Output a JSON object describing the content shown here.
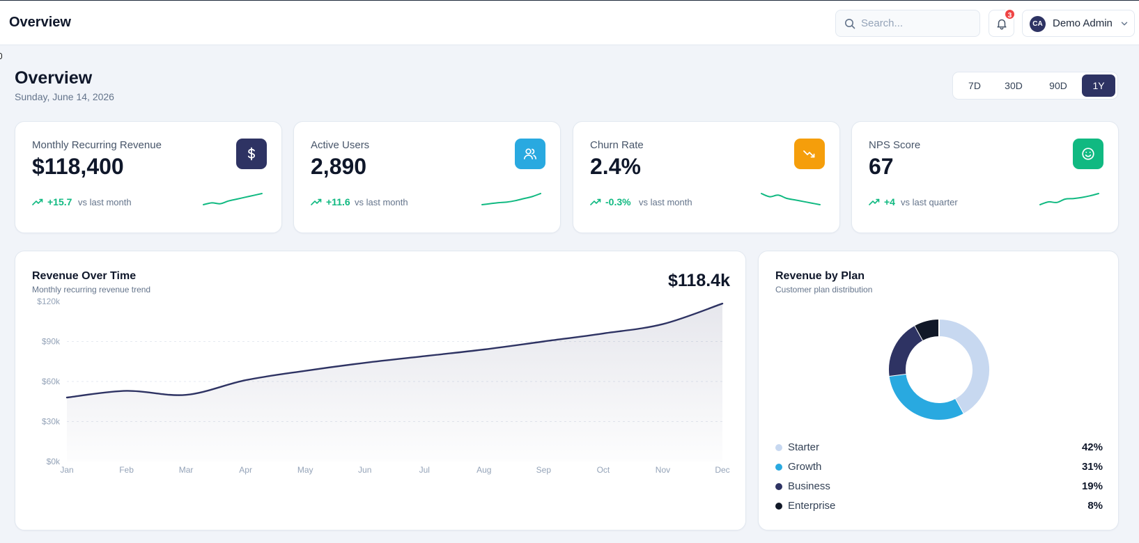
{
  "topbar": {
    "title": "Overview",
    "search_placeholder": "Search...",
    "notifications_count": "3",
    "user": {
      "initials": "CA",
      "name": "Demo Admin"
    }
  },
  "page": {
    "title": "Overview",
    "date": "Sunday, June 14, 2026",
    "ranges": [
      "7D",
      "30D",
      "90D",
      "1Y"
    ],
    "active_range": "1Y"
  },
  "kpis": [
    {
      "label": "Monthly Recurring Revenue",
      "value": "$118,400",
      "delta": "+15.7",
      "compare": "vs last month",
      "icon": "dollar-icon",
      "icon_color": "#2e3363",
      "spark": [
        2,
        3,
        2.5,
        4,
        5,
        6,
        7,
        8
      ]
    },
    {
      "label": "Active Users",
      "value": "2,890",
      "delta": "+11.6",
      "compare": "vs last month",
      "icon": "users-icon",
      "icon_color": "#29a9e0",
      "spark": [
        2,
        2.5,
        3,
        3.3,
        4,
        5,
        6,
        7.5
      ]
    },
    {
      "label": "Churn Rate",
      "value": "2.4%",
      "delta": "-0.3%",
      "compare": "vs last month",
      "icon": "trend-down-icon",
      "icon_color": "#f59e0b",
      "spark": [
        7,
        6,
        6.5,
        5.5,
        5,
        4.5,
        4,
        3.5
      ]
    },
    {
      "label": "NPS Score",
      "value": "67",
      "delta": "+4",
      "compare": "vs last quarter",
      "icon": "smile-icon",
      "icon_color": "#10b981",
      "spark": [
        2,
        2.5,
        2.4,
        3,
        3.1,
        3.3,
        3.6,
        4
      ]
    }
  ],
  "revenue_chart": {
    "title": "Revenue Over Time",
    "subtitle": "Monthly recurring revenue trend",
    "total": "$118.4k",
    "line_color": "#2e3363"
  },
  "plan_chart": {
    "title": "Revenue by Plan",
    "subtitle": "Customer plan distribution",
    "items": [
      {
        "name": "Starter",
        "pct": "42%",
        "color": "#c7d8f0"
      },
      {
        "name": "Growth",
        "pct": "31%",
        "color": "#29a9e0"
      },
      {
        "name": "Business",
        "pct": "19%",
        "color": "#2e3363"
      },
      {
        "name": "Enterprise",
        "pct": "8%",
        "color": "#111827"
      }
    ]
  },
  "chart_data": [
    {
      "type": "area",
      "categories": [
        "Jan",
        "Feb",
        "Mar",
        "Apr",
        "May",
        "Jun",
        "Jul",
        "Aug",
        "Sep",
        "Oct",
        "Nov",
        "Dec"
      ],
      "series": [
        {
          "values": [
            48,
            53,
            50,
            61,
            68,
            74,
            79,
            84,
            90,
            96,
            103,
            118.4
          ]
        }
      ],
      "yticks": [
        "$0k",
        "$30k",
        "$60k",
        "$90k",
        "$120k"
      ],
      "ylim": [
        0,
        120
      ],
      "grid": true,
      "unit": "$k"
    },
    {
      "type": "pie",
      "categories": [
        "Starter",
        "Growth",
        "Business",
        "Enterprise"
      ],
      "values": [
        42,
        31,
        19,
        8
      ]
    }
  ]
}
